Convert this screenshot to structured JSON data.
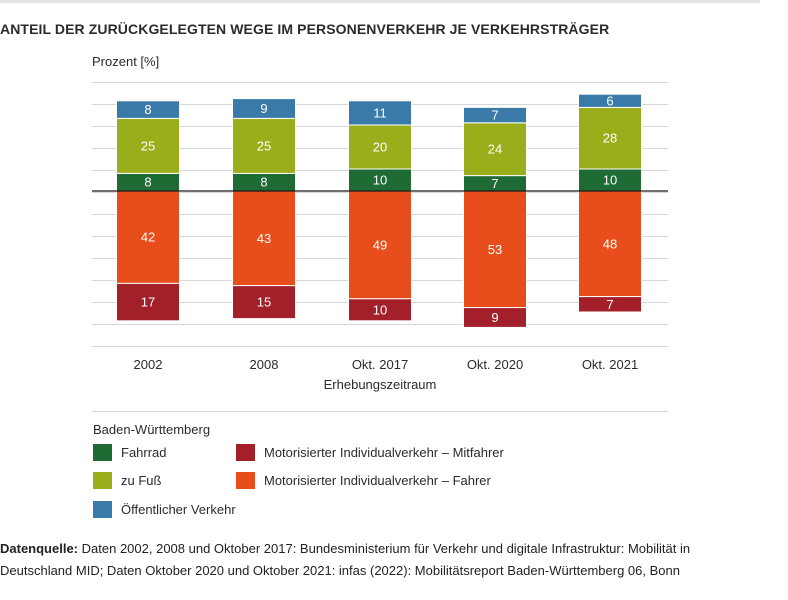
{
  "title": "ANTEIL DER ZURÜCKGELEGTEN WEGE IM PERSONENVERKEHR JE VERKEHRSTRÄGER",
  "chart_data": {
    "type": "bar",
    "stacked": true,
    "diverging": true,
    "ylabel": "Prozent [%]",
    "xlabel": "Erhebungszeitraum",
    "categories": [
      "2002",
      "2008",
      "Okt. 2017",
      "Okt. 2020",
      "Okt. 2021"
    ],
    "series": [
      {
        "name": "Fahrrad",
        "direction": "up",
        "color": "#1e6b34",
        "values": [
          8,
          8,
          10,
          7,
          10
        ]
      },
      {
        "name": "zu Fuß",
        "direction": "up",
        "color": "#9aad1a",
        "values": [
          25,
          25,
          20,
          24,
          28
        ]
      },
      {
        "name": "Öffentlicher Verkehr",
        "direction": "up",
        "color": "#3a7aa8",
        "values": [
          8,
          9,
          11,
          7,
          6
        ]
      },
      {
        "name": "Motorisierter Individualverkehr – Fahrer",
        "direction": "down",
        "color": "#e84e1b",
        "values": [
          42,
          43,
          49,
          53,
          48
        ]
      },
      {
        "name": "Motorisierter Individualverkehr – Mitfahrer",
        "direction": "down",
        "color": "#a3202a",
        "values": [
          17,
          15,
          10,
          9,
          7
        ]
      }
    ],
    "grid": true,
    "legend_position": "bottom"
  },
  "legend": {
    "title": "Baden-Württemberg",
    "items": [
      {
        "label": "Fahrrad",
        "color": "#1e6b34"
      },
      {
        "label": "zu Fuß",
        "color": "#9aad1a"
      },
      {
        "label": "Öffentlicher Verkehr",
        "color": "#3a7aa8"
      },
      {
        "label": "Motorisierter Individualverkehr – Mitfahrer",
        "color": "#a3202a"
      },
      {
        "label": "Motorisierter Individualverkehr – Fahrer",
        "color": "#e84e1b"
      }
    ]
  },
  "source": {
    "label": "Datenquelle:",
    "text": "Daten 2002, 2008 und Oktober 2017: Bundesministerium für Verkehr und digitale Infrastruktur: Mobili­tät in Deutschland MID; Daten Oktober 2020 und Oktober 2021: infas (2022): Mobilitätsreport Baden-Württemberg 06, Bonn"
  }
}
